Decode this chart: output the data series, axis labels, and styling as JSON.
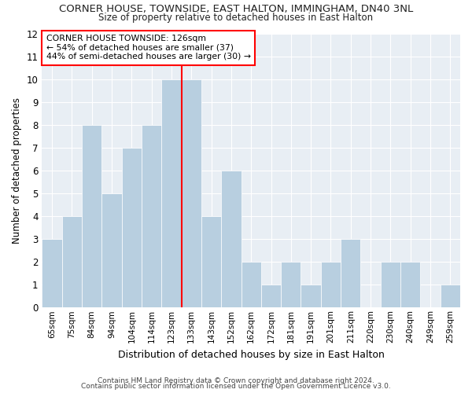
{
  "title": "CORNER HOUSE, TOWNSIDE, EAST HALTON, IMMINGHAM, DN40 3NL",
  "subtitle": "Size of property relative to detached houses in East Halton",
  "xlabel": "Distribution of detached houses by size in East Halton",
  "ylabel": "Number of detached properties",
  "categories": [
    "65sqm",
    "75sqm",
    "84sqm",
    "94sqm",
    "104sqm",
    "114sqm",
    "123sqm",
    "133sqm",
    "143sqm",
    "152sqm",
    "162sqm",
    "172sqm",
    "181sqm",
    "191sqm",
    "201sqm",
    "211sqm",
    "220sqm",
    "230sqm",
    "240sqm",
    "249sqm",
    "259sqm"
  ],
  "values": [
    3,
    4,
    8,
    5,
    7,
    8,
    10,
    10,
    4,
    6,
    2,
    1,
    2,
    1,
    2,
    3,
    0,
    2,
    2,
    0,
    1
  ],
  "bar_color": "#b8cfe0",
  "bar_edgecolor": "#b8cfe0",
  "red_line_index": 6,
  "red_line_label": "CORNER HOUSE TOWNSIDE: 126sqm",
  "annotation_line1": "← 54% of detached houses are smaller (37)",
  "annotation_line2": "44% of semi-detached houses are larger (30) →",
  "ylim": [
    0,
    12
  ],
  "yticks": [
    0,
    1,
    2,
    3,
    4,
    5,
    6,
    7,
    8,
    9,
    10,
    11,
    12
  ],
  "fig_bg_color": "#ffffff",
  "plot_bg_color": "#e8eef4",
  "grid_color": "#ffffff",
  "footer1": "Contains HM Land Registry data © Crown copyright and database right 2024.",
  "footer2": "Contains public sector information licensed under the Open Government Licence v3.0."
}
